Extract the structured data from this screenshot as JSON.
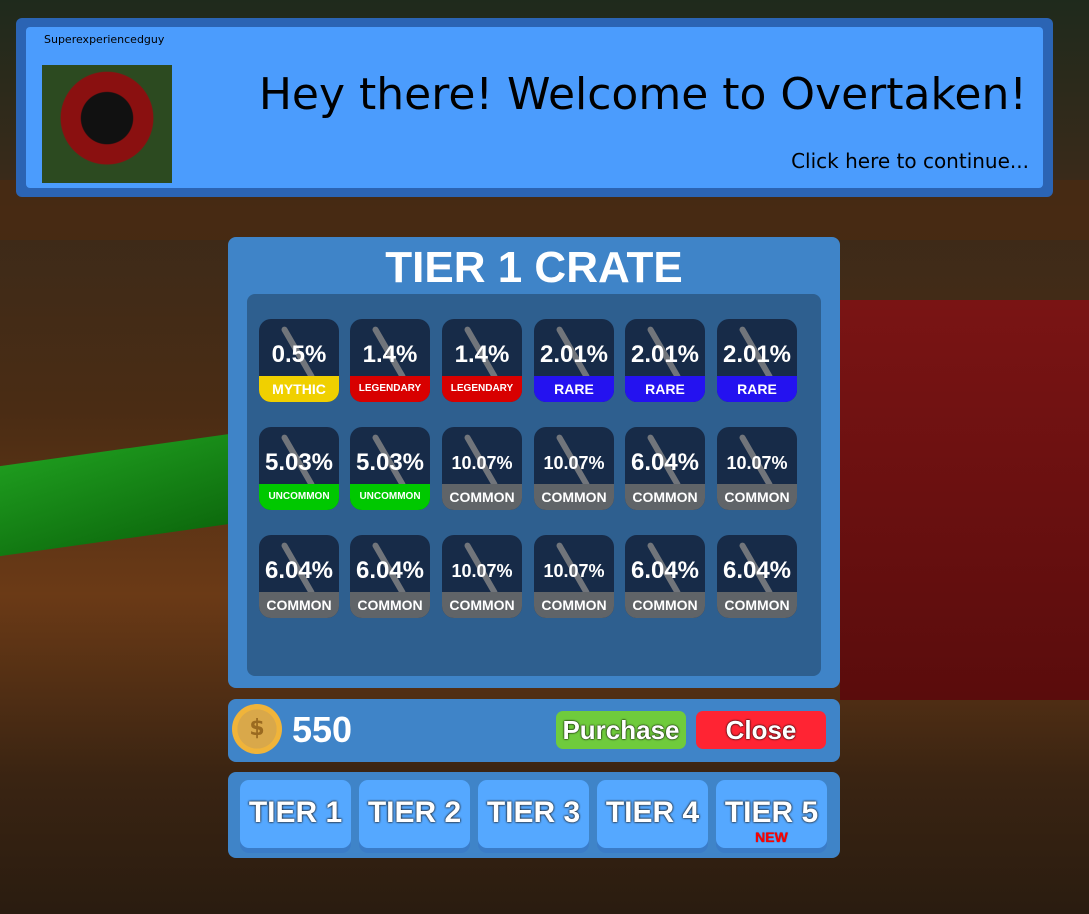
{
  "dialog": {
    "speaker": "Superexperiencedguy",
    "message": "Hey there! Welcome to Overtaken!",
    "continue": "Click here to continue..."
  },
  "crate": {
    "title": "TIER 1 CRATE",
    "items": [
      {
        "pct": "0.5%",
        "rarity": "MYTHIC",
        "color": "#f0d000"
      },
      {
        "pct": "1.4%",
        "rarity": "LEGENDARY",
        "color": "#d80000"
      },
      {
        "pct": "1.4%",
        "rarity": "LEGENDARY",
        "color": "#d80000"
      },
      {
        "pct": "2.01%",
        "rarity": "RARE",
        "color": "#2412f0"
      },
      {
        "pct": "2.01%",
        "rarity": "RARE",
        "color": "#2412f0"
      },
      {
        "pct": "2.01%",
        "rarity": "RARE",
        "color": "#2412f0"
      },
      {
        "pct": "5.03%",
        "rarity": "UNCOMMON",
        "color": "#00c800"
      },
      {
        "pct": "5.03%",
        "rarity": "UNCOMMON",
        "color": "#00c800"
      },
      {
        "pct": "10.07%",
        "rarity": "COMMON",
        "color": "#606468"
      },
      {
        "pct": "10.07%",
        "rarity": "COMMON",
        "color": "#606468"
      },
      {
        "pct": "6.04%",
        "rarity": "COMMON",
        "color": "#606468"
      },
      {
        "pct": "10.07%",
        "rarity": "COMMON",
        "color": "#606468"
      },
      {
        "pct": "6.04%",
        "rarity": "COMMON",
        "color": "#606468"
      },
      {
        "pct": "6.04%",
        "rarity": "COMMON",
        "color": "#606468"
      },
      {
        "pct": "10.07%",
        "rarity": "COMMON",
        "color": "#606468"
      },
      {
        "pct": "10.07%",
        "rarity": "COMMON",
        "color": "#606468"
      },
      {
        "pct": "6.04%",
        "rarity": "COMMON",
        "color": "#606468"
      },
      {
        "pct": "6.04%",
        "rarity": "COMMON",
        "color": "#606468"
      }
    ]
  },
  "wallet": {
    "icon": "coin-icon",
    "symbol": "$",
    "amount": "550"
  },
  "actions": {
    "purchase": "Purchase",
    "close": "Close"
  },
  "tiers": [
    {
      "label": "TIER 1"
    },
    {
      "label": "TIER 2"
    },
    {
      "label": "TIER 3"
    },
    {
      "label": "TIER 4"
    },
    {
      "label": "TIER 5",
      "badge": "NEW"
    }
  ]
}
